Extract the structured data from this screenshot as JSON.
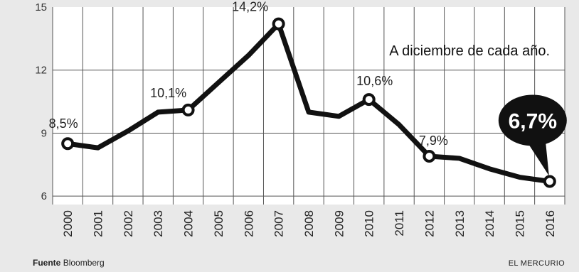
{
  "chart_data": {
    "type": "line",
    "title": "",
    "xlabel": "",
    "ylabel": "",
    "note": "A diciembre de cada año.",
    "ylim": [
      5.6,
      15
    ],
    "yticks": [
      6,
      9,
      12,
      15
    ],
    "ytick_labels": [
      "6",
      "9",
      "12",
      "15"
    ],
    "x": [
      "2000",
      "2001",
      "2002",
      "2003",
      "2004",
      "2005",
      "2006",
      "2007",
      "2008",
      "2009",
      "2010",
      "2011",
      "2012",
      "2013",
      "2014",
      "2015",
      "2016"
    ],
    "values": [
      8.5,
      8.3,
      9.1,
      10.0,
      10.1,
      11.4,
      12.7,
      14.2,
      10.0,
      9.8,
      10.6,
      9.4,
      7.9,
      7.8,
      7.3,
      6.9,
      6.7
    ],
    "data_labels": [
      {
        "index": 0,
        "text": "8,5%"
      },
      {
        "index": 4,
        "text": "10,1%"
      },
      {
        "index": 7,
        "text": "14,2%"
      },
      {
        "index": 10,
        "text": "10,6%"
      },
      {
        "index": 12,
        "text": "7,9%"
      }
    ],
    "highlight": {
      "index": 16,
      "text": "6,7%"
    },
    "grid": true,
    "line_color": "#111111",
    "highlight_color": "#111111"
  },
  "footer": {
    "source_label": "Fuente",
    "source_name": "Bloomberg",
    "publisher": "EL MERCURIO"
  }
}
